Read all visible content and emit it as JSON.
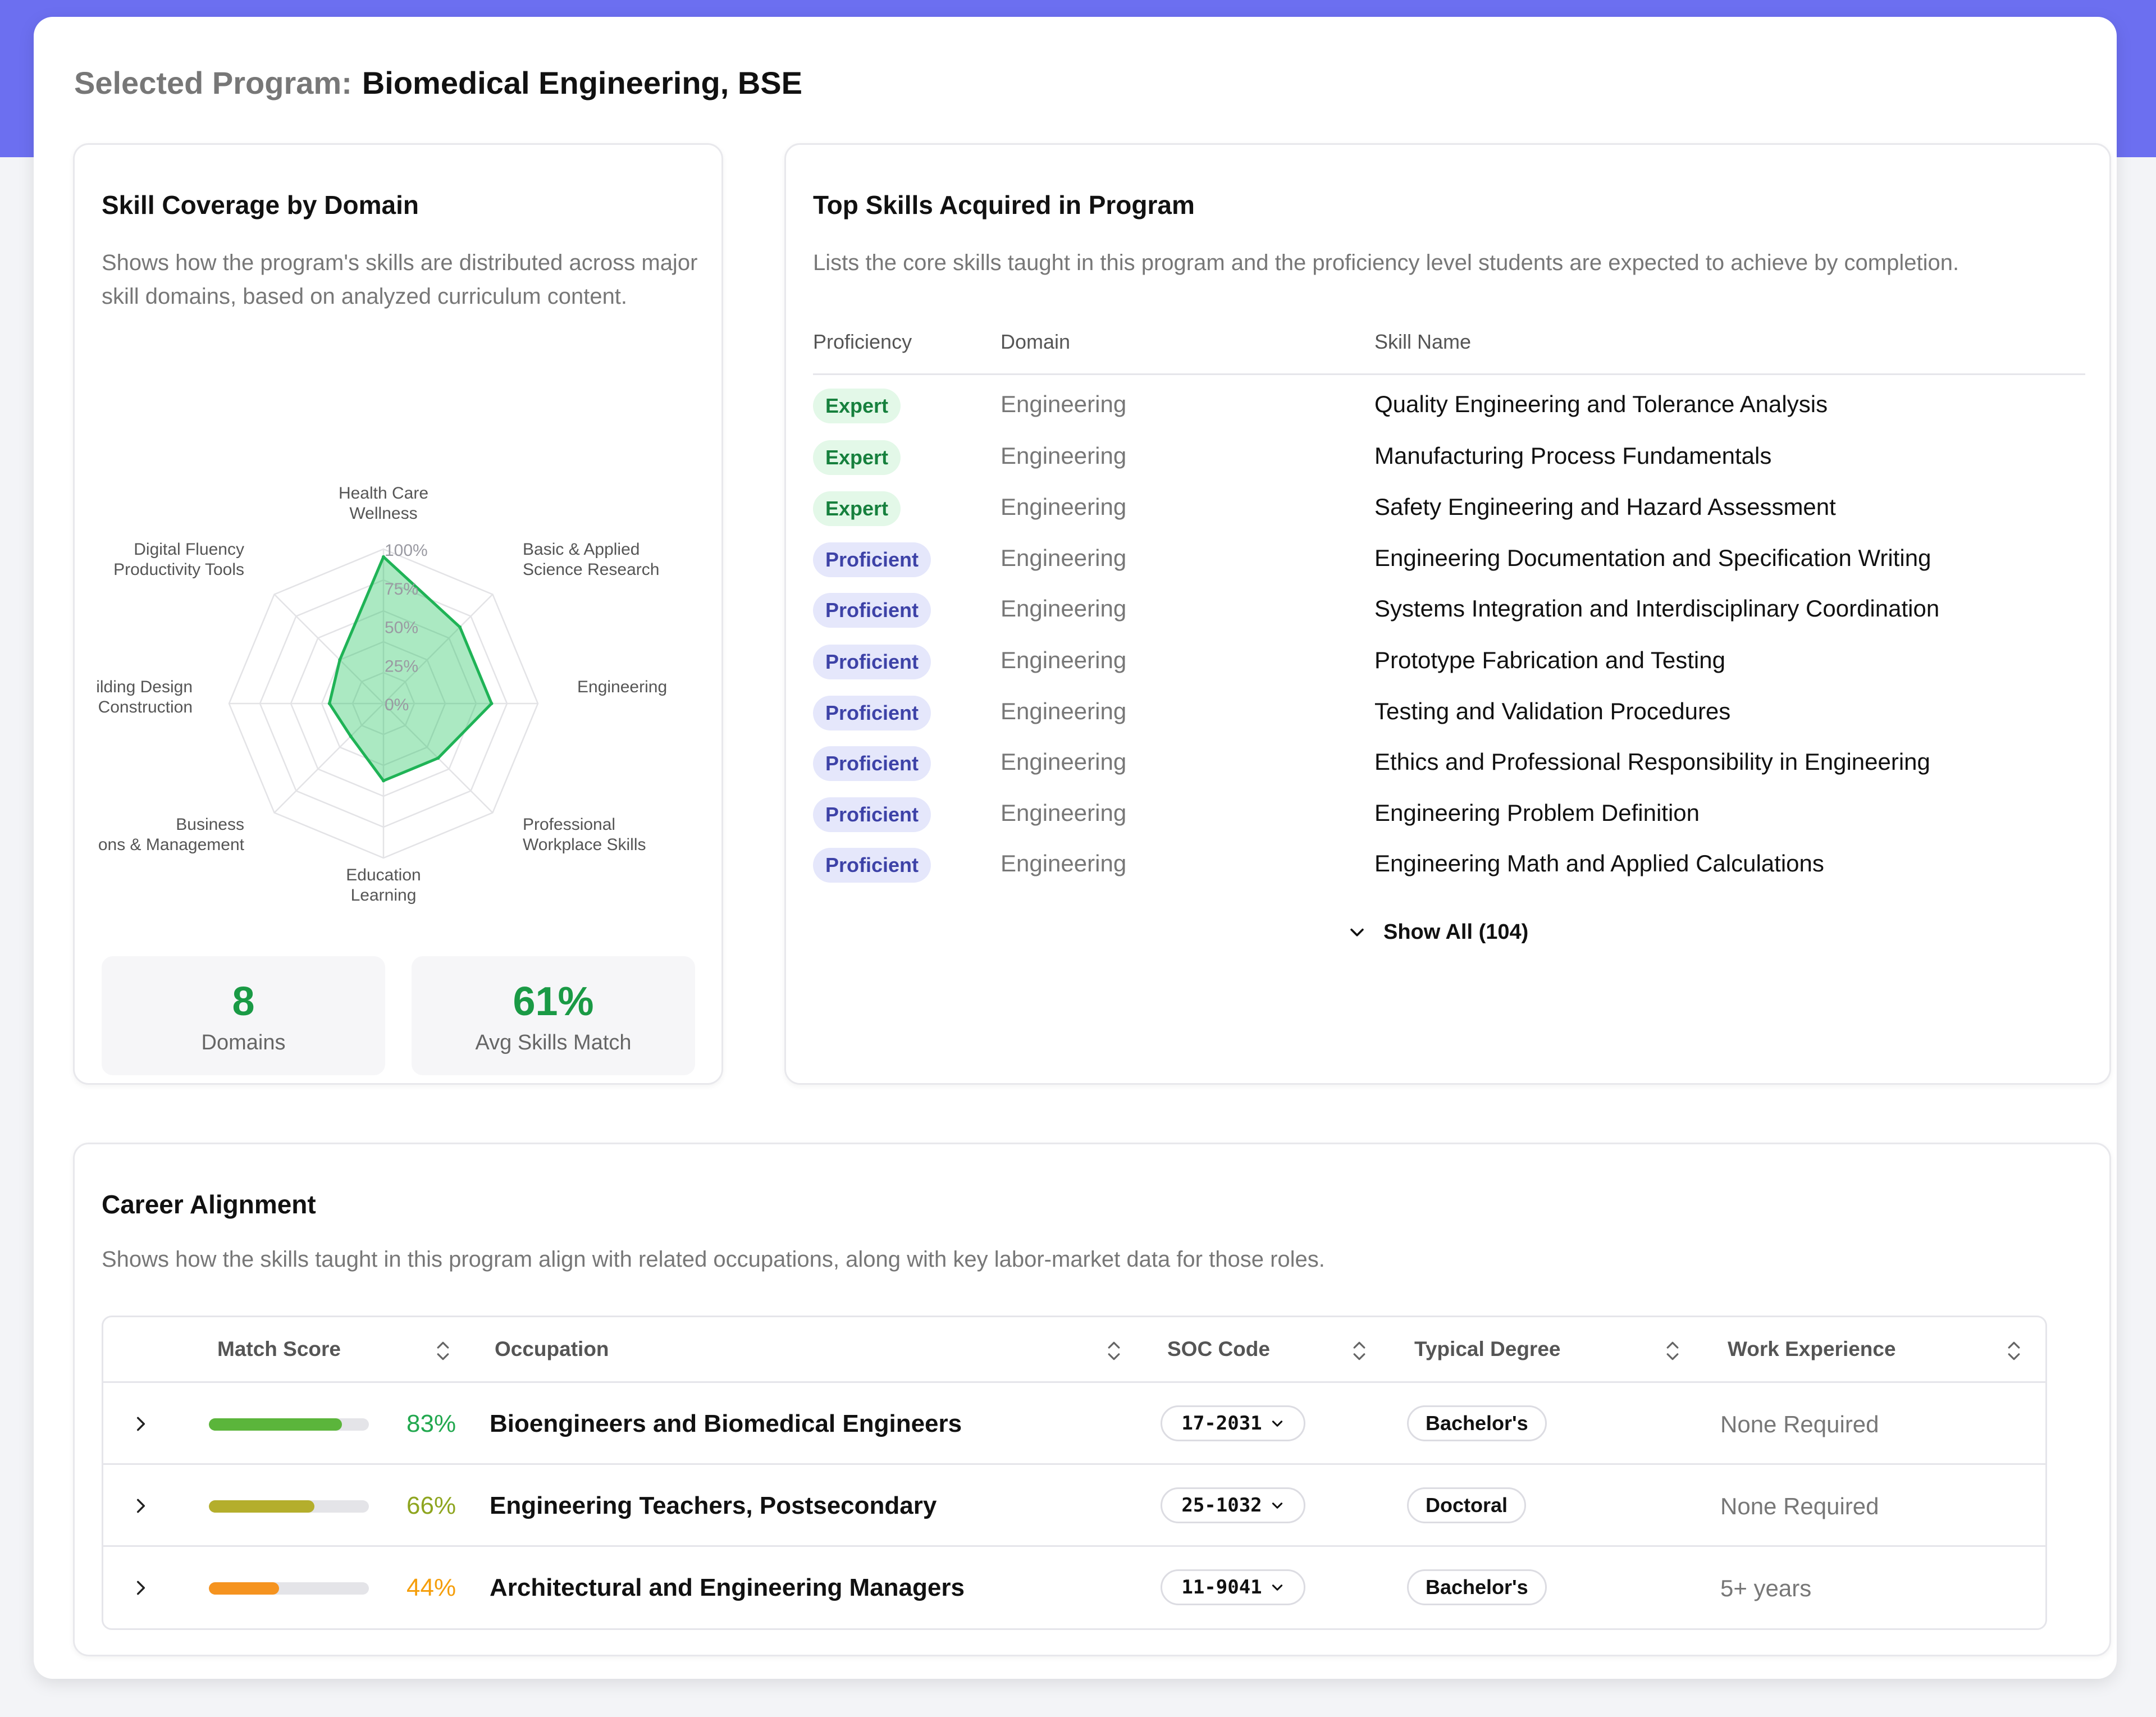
{
  "header": {
    "label": "Selected Program:",
    "program": "Biomedical Engineering, BSE"
  },
  "coverage": {
    "title": "Skill Coverage by Domain",
    "description": "Shows how the program's skills are distributed across major skill domains, based on analyzed curriculum content.",
    "stats": [
      {
        "value": "8",
        "label": "Domains"
      },
      {
        "value": "61%",
        "label": "Avg Skills Match"
      }
    ]
  },
  "chart_data": {
    "type": "radar",
    "axes": [
      {
        "line1": "Health Care",
        "line2": "Wellness"
      },
      {
        "line1": "Basic & Applied",
        "line2": "Science Research"
      },
      {
        "line1": "Engineering",
        "line2": ""
      },
      {
        "line1": "Professional",
        "line2": "Workplace Skills"
      },
      {
        "line1": "Education",
        "line2": "Learning"
      },
      {
        "line1": "Business",
        "line2": "tions & Management"
      },
      {
        "line1": "uilding Design",
        "line2": "k Construction"
      },
      {
        "line1": "Digital Fluency",
        "line2": "Productivity Tools"
      }
    ],
    "values": [
      95,
      70,
      70,
      50,
      50,
      30,
      35,
      40
    ],
    "rings": [
      "0%",
      "25%",
      "50%",
      "75%",
      "100%"
    ],
    "range": [
      0,
      100
    ],
    "fill_color": "#22c55e",
    "grid": true
  },
  "skills": {
    "title": "Top Skills Acquired in Program",
    "description": "Lists the core skills taught in this program and the proficiency level students are expected to achieve by completion.",
    "columns": {
      "proficiency": "Proficiency",
      "domain": "Domain",
      "name": "Skill Name"
    },
    "rows": [
      {
        "level": "Expert",
        "domain": "Engineering",
        "name": "Quality Engineering and Tolerance Analysis"
      },
      {
        "level": "Expert",
        "domain": "Engineering",
        "name": "Manufacturing Process Fundamentals"
      },
      {
        "level": "Expert",
        "domain": "Engineering",
        "name": "Safety Engineering and Hazard Assessment"
      },
      {
        "level": "Proficient",
        "domain": "Engineering",
        "name": "Engineering Documentation and Specification Writing"
      },
      {
        "level": "Proficient",
        "domain": "Engineering",
        "name": "Systems Integration and Interdisciplinary Coordination"
      },
      {
        "level": "Proficient",
        "domain": "Engineering",
        "name": "Prototype Fabrication and Testing"
      },
      {
        "level": "Proficient",
        "domain": "Engineering",
        "name": "Testing and Validation Procedures"
      },
      {
        "level": "Proficient",
        "domain": "Engineering",
        "name": "Ethics and Professional Responsibility in Engineering"
      },
      {
        "level": "Proficient",
        "domain": "Engineering",
        "name": "Engineering Problem Definition"
      },
      {
        "level": "Proficient",
        "domain": "Engineering",
        "name": "Engineering Math and Applied Calculations"
      }
    ],
    "show_all": "Show All (104)"
  },
  "career": {
    "title": "Career Alignment",
    "description": "Shows how the skills taught in this program align with related occupations, along with key labor-market data for those roles.",
    "columns": {
      "match": "Match Score",
      "occupation": "Occupation",
      "soc": "SOC Code",
      "degree": "Typical Degree",
      "experience": "Work Experience"
    },
    "rows": [
      {
        "match": 83,
        "match_label": "83%",
        "color": "#5bb53b",
        "occupation": "Bioengineers and Biomedical Engineers",
        "soc": "17-2031",
        "degree": "Bachelor's",
        "experience": "None Required"
      },
      {
        "match": 66,
        "match_label": "66%",
        "color": "#b4ae2c",
        "occupation": "Engineering Teachers, Postsecondary",
        "soc": "25-1032",
        "degree": "Doctoral",
        "experience": "None Required"
      },
      {
        "match": 44,
        "match_label": "44%",
        "color": "#f5931f",
        "occupation": "Architectural and Engineering Managers",
        "soc": "11-9041",
        "degree": "Bachelor's",
        "experience": "5+ years"
      }
    ],
    "pct_colors": [
      "#22a84f",
      "#8ea51f",
      "#f59e0b"
    ]
  }
}
